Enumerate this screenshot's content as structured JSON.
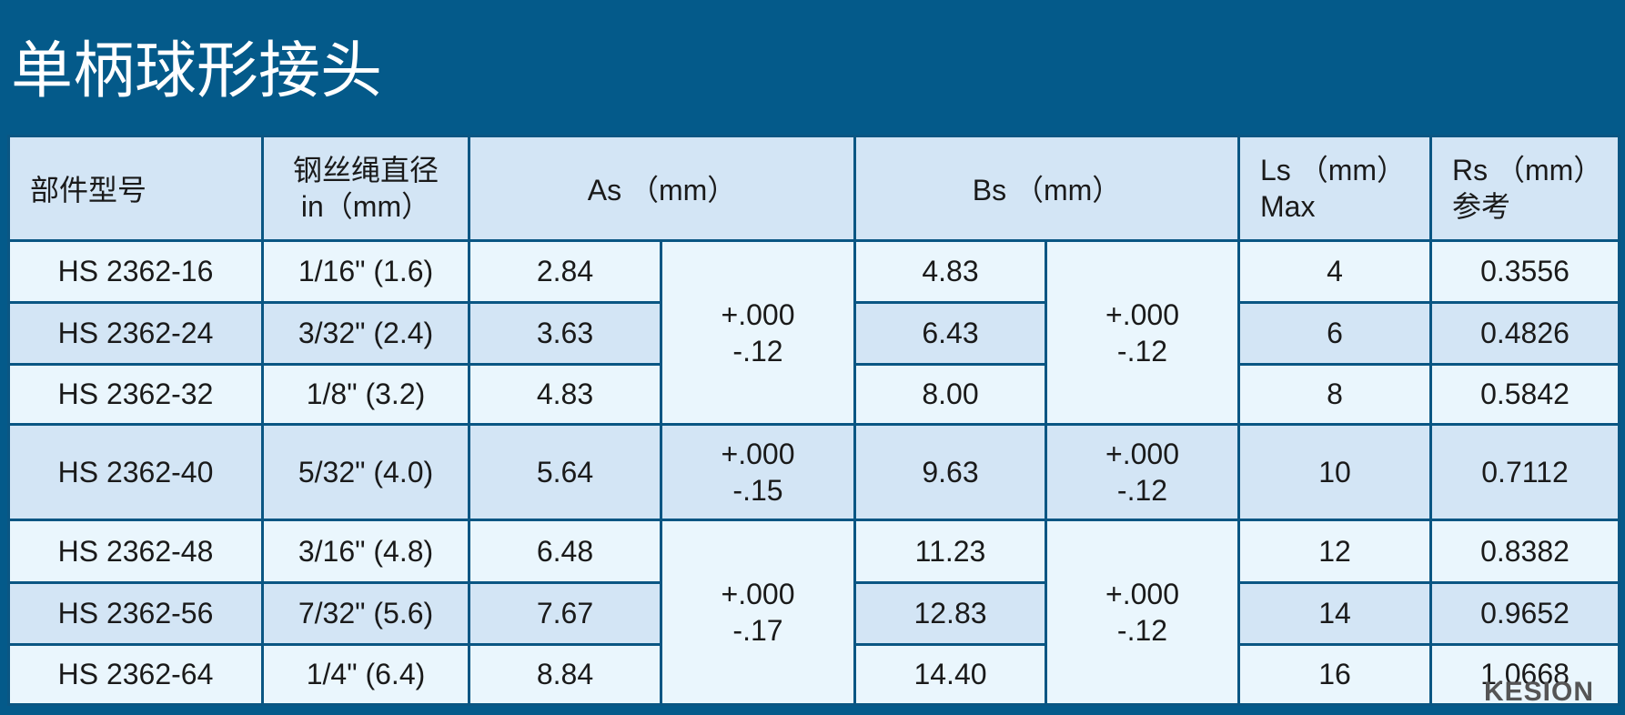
{
  "title": "单柄球形接头",
  "header": {
    "part": "部件型号",
    "diameter": [
      "钢丝绳直径",
      "in（mm）"
    ],
    "as": "As （mm）",
    "bs": "Bs （mm）",
    "ls": [
      "Ls （mm）",
      "Max"
    ],
    "rs": [
      "Rs （mm）",
      "参考"
    ]
  },
  "rows": [
    {
      "part": "HS 2362-16",
      "diameter": "1/16\" (1.6)",
      "as": "2.84",
      "as_tol": [
        "+.000",
        "-.12"
      ],
      "bs": "4.83",
      "bs_tol": [
        "+.000",
        "-.12"
      ],
      "ls": "4",
      "rs": "0.3556"
    },
    {
      "part": "HS 2362-24",
      "diameter": "3/32\" (2.4)",
      "as": "3.63",
      "as_tol": null,
      "bs": "6.43",
      "bs_tol": null,
      "ls": "6",
      "rs": "0.4826"
    },
    {
      "part": "HS 2362-32",
      "diameter": "1/8\" (3.2)",
      "as": "4.83",
      "as_tol": null,
      "bs": "8.00",
      "bs_tol": null,
      "ls": "8",
      "rs": "0.5842"
    },
    {
      "part": "HS 2362-40",
      "diameter": "5/32\" (4.0)",
      "as": "5.64",
      "as_tol": [
        "+.000",
        "-.15"
      ],
      "bs": "9.63",
      "bs_tol": [
        "+.000",
        "-.12"
      ],
      "ls": "10",
      "rs": "0.7112"
    },
    {
      "part": "HS 2362-48",
      "diameter": "3/16\" (4.8)",
      "as": "6.48",
      "as_tol": [
        "+.000",
        "-.17"
      ],
      "bs": "11.23",
      "bs_tol": [
        "+.000",
        "-.12"
      ],
      "ls": "12",
      "rs": "0.8382"
    },
    {
      "part": "HS 2362-56",
      "diameter": "7/32\" (5.6)",
      "as": "7.67",
      "as_tol": null,
      "bs": "12.83",
      "bs_tol": null,
      "ls": "14",
      "rs": "0.9652"
    },
    {
      "part": "HS 2362-64",
      "diameter": "1/4\" (6.4)",
      "as": "8.84",
      "as_tol": null,
      "bs": "14.40",
      "bs_tol": null,
      "ls": "16",
      "rs": "1.0668"
    }
  ],
  "watermark": "KESION"
}
